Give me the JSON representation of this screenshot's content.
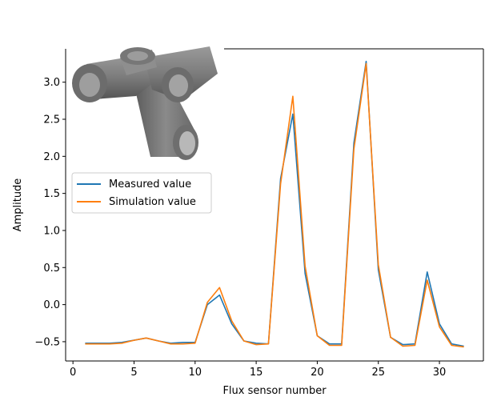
{
  "chart_data": {
    "type": "line",
    "title": "",
    "xlabel": "Flux sensor number",
    "ylabel": "Amplitude",
    "xlim": [
      -0.6,
      33.6
    ],
    "ylim": [
      -0.76,
      3.45
    ],
    "xticks": [
      0,
      5,
      10,
      15,
      20,
      25,
      30
    ],
    "yticks": [
      -0.5,
      0.0,
      0.5,
      1.0,
      1.5,
      2.0,
      2.5,
      3.0
    ],
    "ytick_labels": [
      "−0.5",
      "0.0",
      "0.5",
      "1.0",
      "1.5",
      "2.0",
      "2.5",
      "3.0"
    ],
    "grid": false,
    "legend_position": "center-left",
    "inset_image": "gray-pipe-junction-render",
    "x": [
      1,
      2,
      3,
      4,
      5,
      6,
      7,
      8,
      9,
      10,
      11,
      12,
      13,
      14,
      15,
      16,
      17,
      18,
      19,
      20,
      21,
      22,
      23,
      24,
      25,
      26,
      27,
      28,
      29,
      30,
      31,
      32
    ],
    "series": [
      {
        "name": "Measured value",
        "color": "#1f77b4",
        "values": [
          -0.52,
          -0.52,
          -0.52,
          -0.51,
          -0.48,
          -0.45,
          -0.49,
          -0.52,
          -0.51,
          -0.51,
          0.0,
          0.13,
          -0.26,
          -0.49,
          -0.52,
          -0.53,
          1.7,
          2.57,
          0.42,
          -0.42,
          -0.53,
          -0.53,
          2.18,
          3.28,
          0.47,
          -0.44,
          -0.54,
          -0.53,
          0.44,
          -0.26,
          -0.53,
          -0.56
        ]
      },
      {
        "name": "Simulation value",
        "color": "#ff7f0e",
        "values": [
          -0.53,
          -0.53,
          -0.53,
          -0.52,
          -0.48,
          -0.45,
          -0.49,
          -0.53,
          -0.53,
          -0.52,
          0.03,
          0.23,
          -0.22,
          -0.49,
          -0.54,
          -0.53,
          1.63,
          2.81,
          0.52,
          -0.42,
          -0.55,
          -0.55,
          2.1,
          3.25,
          0.54,
          -0.44,
          -0.56,
          -0.55,
          0.33,
          -0.3,
          -0.55,
          -0.57
        ]
      }
    ]
  }
}
